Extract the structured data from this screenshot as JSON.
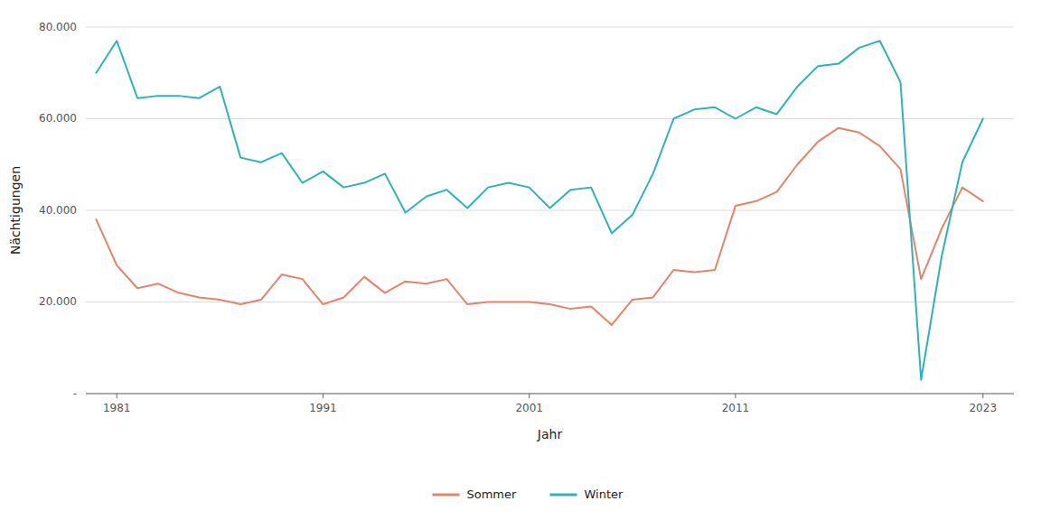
{
  "chart_data": {
    "type": "line",
    "x": [
      1980,
      1981,
      1982,
      1983,
      1984,
      1985,
      1986,
      1987,
      1988,
      1989,
      1990,
      1991,
      1992,
      1993,
      1994,
      1995,
      1996,
      1997,
      1998,
      1999,
      2000,
      2001,
      2002,
      2003,
      2004,
      2005,
      2006,
      2007,
      2008,
      2009,
      2010,
      2011,
      2012,
      2013,
      2014,
      2015,
      2016,
      2017,
      2018,
      2019,
      2020,
      2021,
      2022,
      2023
    ],
    "series": [
      {
        "name": "Sommer",
        "color": "#E8826A",
        "values": [
          38000,
          28000,
          23000,
          24000,
          22000,
          21000,
          20500,
          19500,
          20500,
          26000,
          25000,
          19500,
          21000,
          25500,
          22000,
          24500,
          24000,
          25000,
          19500,
          20000,
          20000,
          20000,
          19500,
          18500,
          19000,
          15000,
          20500,
          21000,
          27000,
          26500,
          27000,
          41000,
          42000,
          44000,
          50000,
          55000,
          58000,
          57000,
          54000,
          49000,
          25000,
          36000,
          45000,
          42000
        ]
      },
      {
        "name": "Winter",
        "color": "#2BB5B8",
        "values": [
          70000,
          77000,
          64500,
          65000,
          65000,
          64500,
          67000,
          51500,
          50500,
          52500,
          46000,
          48500,
          45000,
          46000,
          48000,
          39500,
          43000,
          44500,
          40500,
          45000,
          46000,
          45000,
          40500,
          44500,
          45000,
          35000,
          39000,
          48000,
          60000,
          62000,
          62500,
          60000,
          62500,
          61000,
          67000,
          71500,
          72000,
          75500,
          77000,
          68000,
          3000,
          30000,
          50500,
          60000
        ]
      }
    ],
    "xlabel": "Jahr",
    "ylabel": "Nächtigungen",
    "xlim": [
      1979.5,
      2024.5
    ],
    "xticks": [
      1981,
      1991,
      2001,
      2011,
      2023
    ],
    "ylim": [
      0,
      80000
    ],
    "yticks": [
      {
        "value": 0,
        "label": "-"
      },
      {
        "value": 20000,
        "label": "20.000"
      },
      {
        "value": 40000,
        "label": "40.000"
      },
      {
        "value": 60000,
        "label": "60.000"
      },
      {
        "value": 80000,
        "label": "80.000"
      }
    ],
    "grid": true,
    "legend": "bottom"
  }
}
